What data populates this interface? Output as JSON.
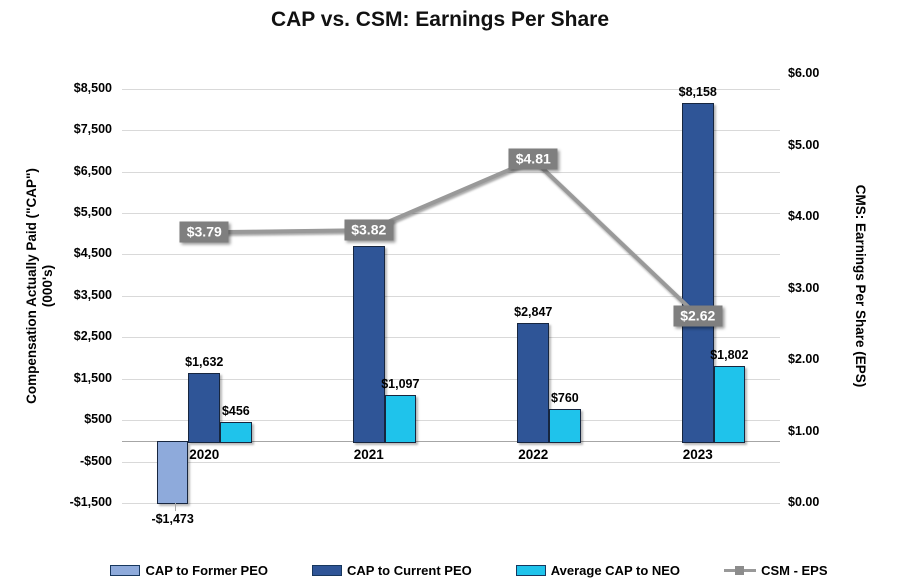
{
  "title": "CAP vs. CSM: Earnings Per Share",
  "chart_data": {
    "type": "combo",
    "categories": [
      "2020",
      "2021",
      "2022",
      "2023"
    ],
    "series": [
      {
        "name": "CAP to Former PEO",
        "type": "bar",
        "axis": "left",
        "color": "#8EAADB",
        "values": [
          -1473,
          null,
          null,
          null
        ],
        "labels": [
          "-$1,473",
          "",
          "",
          ""
        ]
      },
      {
        "name": "CAP to Current PEO",
        "type": "bar",
        "axis": "left",
        "color": "#2F5597",
        "values": [
          1632,
          4700,
          2847,
          8158
        ],
        "labels": [
          "$1,632",
          "",
          "$2,847",
          "$8,158"
        ]
      },
      {
        "name": "Average CAP to NEO",
        "type": "bar",
        "axis": "left",
        "color": "#1FC3EB",
        "values": [
          456,
          1097,
          760,
          1802
        ],
        "labels": [
          "$456",
          "$1,097",
          "$760",
          "$1,802"
        ]
      },
      {
        "name": "CSM - EPS",
        "type": "line",
        "axis": "right",
        "color": "#999999",
        "values": [
          3.79,
          3.82,
          4.81,
          2.62
        ],
        "labels": [
          "$3.79",
          "$3.82",
          "$4.81",
          "$2.62"
        ]
      }
    ],
    "left_axis": {
      "title_line1": "Compensation Actually Paid (\"CAP\")",
      "title_line2": "(000's)",
      "min": -1500,
      "max": 9000,
      "ticks": [
        {
          "v": 8500,
          "label": "$8,500"
        },
        {
          "v": 7500,
          "label": "$7,500"
        },
        {
          "v": 6500,
          "label": "$6,500"
        },
        {
          "v": 5500,
          "label": "$5,500"
        },
        {
          "v": 4500,
          "label": "$4,500"
        },
        {
          "v": 3500,
          "label": "$3,500"
        },
        {
          "v": 2500,
          "label": "$2,500"
        },
        {
          "v": 1500,
          "label": "$1,500"
        },
        {
          "v": 500,
          "label": "$500"
        },
        {
          "v": -500,
          "label": "-$500"
        },
        {
          "v": -1500,
          "label": "-$1,500"
        }
      ]
    },
    "right_axis": {
      "title": "CMS: Earnings Per Share (EPS)",
      "min": 0,
      "max": 6.09,
      "ticks": [
        {
          "v": 6,
          "label": "$6.00"
        },
        {
          "v": 5,
          "label": "$5.00"
        },
        {
          "v": 4,
          "label": "$4.00"
        },
        {
          "v": 3,
          "label": "$3.00"
        },
        {
          "v": 2,
          "label": "$2.00"
        },
        {
          "v": 1,
          "label": "$1.00"
        },
        {
          "v": 0,
          "label": "$0.00"
        }
      ]
    },
    "grid": true,
    "legend_position": "bottom"
  },
  "legend": [
    {
      "label": "CAP to Former PEO",
      "swatch": "bar",
      "color": "#8EAADB"
    },
    {
      "label": "CAP to Current PEO",
      "swatch": "bar",
      "color": "#2F5597"
    },
    {
      "label": "Average CAP to NEO",
      "swatch": "bar",
      "color": "#1FC3EB"
    },
    {
      "label": "CSM - EPS",
      "swatch": "line",
      "color": "#999999"
    }
  ],
  "colors": {
    "grid": "#d9d9d9",
    "zero_line": "#a6a6a6",
    "eps_label_bg": "#7f7f7f",
    "eps_label_text": "#ffffff",
    "bar_border": "#17263f"
  }
}
